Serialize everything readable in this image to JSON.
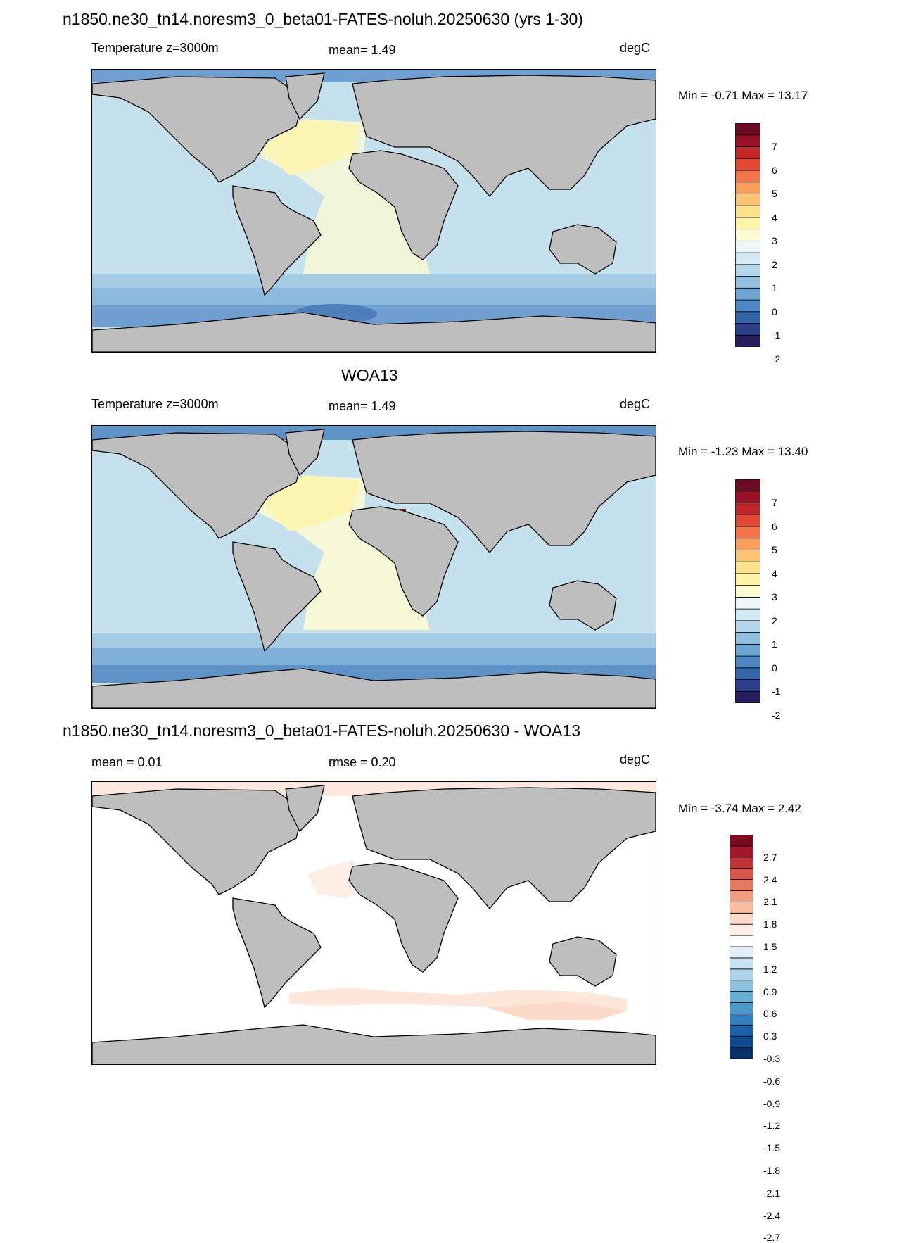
{
  "panels": [
    {
      "title": "n1850.ne30_tn14.noresm3_0_beta01-FATES-noluh.20250630 (yrs 1-30)",
      "left_label": "Temperature z=3000m",
      "center_label": "mean=   1.49",
      "units": "degC",
      "minmax": "Min =  -0.71 Max =  13.17",
      "colorbar": {
        "colors": [
          "#2a1d5e",
          "#2c3f8a",
          "#3465a8",
          "#4f86c4",
          "#6fa5d4",
          "#92bfe0",
          "#b4d6ec",
          "#d4eaf4",
          "#edf7f7",
          "#fdfbd1",
          "#fff4a6",
          "#fee38c",
          "#fdc473",
          "#fb9e5a",
          "#f57548",
          "#e04a33",
          "#c22628",
          "#9a1026",
          "#6b0a22"
        ],
        "labels": [
          "7",
          "6",
          "5",
          "4",
          "3",
          "2",
          "1",
          "0",
          "-1",
          "-2"
        ]
      }
    },
    {
      "title": "WOA13",
      "left_label": "Temperature z=3000m",
      "center_label": "mean=   1.49",
      "units": "degC",
      "minmax": "Min =  -1.23 Max =  13.40",
      "colorbar": {
        "colors": [
          "#2a1d5e",
          "#2c3f8a",
          "#3465a8",
          "#4f86c4",
          "#6fa5d4",
          "#92bfe0",
          "#b4d6ec",
          "#d4eaf4",
          "#edf7f7",
          "#fdfbd1",
          "#fff4a6",
          "#fee38c",
          "#fdc473",
          "#fb9e5a",
          "#f57548",
          "#e04a33",
          "#c22628",
          "#9a1026",
          "#6b0a22"
        ],
        "labels": [
          "7",
          "6",
          "5",
          "4",
          "3",
          "2",
          "1",
          "0",
          "-1",
          "-2"
        ]
      }
    },
    {
      "title": "n1850.ne30_tn14.noresm3_0_beta01-FATES-noluh.20250630 - WOA13",
      "left_label": "mean =   0.01",
      "center_label": "rmse =   0.20",
      "units": "degC",
      "minmax": "Min =  -3.74 Max =   2.42",
      "colorbar": {
        "colors": [
          "#08306b",
          "#0d4a8f",
          "#1d62a8",
          "#3180bd",
          "#4b98cb",
          "#6aaed6",
          "#8cc2e0",
          "#acd3ea",
          "#c9e2f1",
          "#e2eff7",
          "#ffffff",
          "#fdeee6",
          "#fcd9c8",
          "#f9bca3",
          "#f39c7f",
          "#e87a61",
          "#d6554a",
          "#c03437",
          "#a3172c",
          "#7a0a20"
        ],
        "labels": [
          "2.7",
          "2.4",
          "2.1",
          "1.8",
          "1.5",
          "1.2",
          "0.9",
          "0.6",
          "0.3",
          "-0.3",
          "-0.6",
          "-0.9",
          "-1.2",
          "-1.5",
          "-1.8",
          "-2.1",
          "-2.4",
          "-2.7"
        ]
      }
    }
  ],
  "colors": {
    "land": "#bebebe",
    "panel1_ocean": "#c6e1ee",
    "panel2_ocean": "#c6e1ee",
    "panel3_ocean": "#ffffff"
  }
}
